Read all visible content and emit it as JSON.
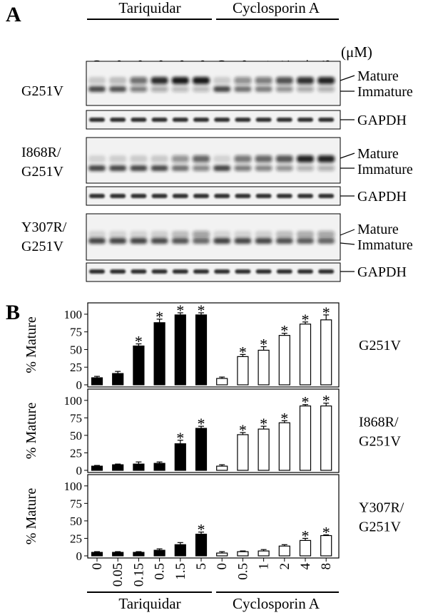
{
  "figure": {
    "panel_a_label": "A",
    "panel_b_label": "B",
    "treatments": [
      "Tariquidar",
      "Cyclosporin A"
    ],
    "unit": "(μM)",
    "tariquidar_doses": [
      "0",
      "0.05",
      "0.15",
      "0.5",
      "1.5",
      "5"
    ],
    "cyclosporin_doses": [
      "0",
      "0.5",
      "1",
      "2",
      "4",
      "8"
    ],
    "band_mature": "Mature",
    "band_immature": "Immature",
    "loading_control": "GAPDH",
    "blots": [
      {
        "label_lines": [
          "G251V"
        ]
      },
      {
        "label_lines": [
          "I868R/",
          "G251V"
        ]
      },
      {
        "label_lines": [
          "Y307R/",
          "G251V"
        ]
      }
    ]
  },
  "chart_data": {
    "type": "bar",
    "ylabel": "% Mature",
    "ylim": [
      0,
      110
    ],
    "yticks": [
      "0",
      "25",
      "50",
      "75",
      "100"
    ],
    "categories": [
      "0",
      "0.05",
      "0.15",
      "0.5",
      "1.5",
      "5",
      "0",
      "0.5",
      "1",
      "2",
      "4",
      "8"
    ],
    "groups": [
      "Tariquidar",
      "Cyclosporin A"
    ],
    "group_colors": {
      "Tariquidar": "#000000",
      "Cyclosporin A": "#ffffff"
    },
    "significance_marker": "*",
    "panels": [
      {
        "label_lines": [
          "G251V"
        ],
        "values": [
          10,
          16,
          55,
          88,
          99,
          99,
          9,
          40,
          49,
          70,
          86,
          92
        ],
        "errors": [
          2,
          3,
          3,
          5,
          3,
          3,
          2,
          3,
          5,
          3,
          3,
          7
        ],
        "significant": [
          false,
          false,
          true,
          true,
          true,
          true,
          false,
          true,
          true,
          true,
          true,
          true
        ]
      },
      {
        "label_lines": [
          "I868R/",
          "G251V"
        ],
        "values": [
          6,
          8,
          9,
          10,
          38,
          60,
          6,
          51,
          59,
          68,
          92,
          92
        ],
        "errors": [
          1,
          1,
          3,
          2,
          5,
          3,
          2,
          3,
          4,
          3,
          2,
          4
        ],
        "significant": [
          false,
          false,
          false,
          false,
          true,
          true,
          false,
          true,
          true,
          true,
          true,
          true
        ]
      },
      {
        "label_lines": [
          "Y307R/",
          "G251V"
        ],
        "values": [
          5,
          5,
          5,
          8,
          16,
          31,
          4,
          6,
          7,
          14,
          22,
          29
        ],
        "errors": [
          1,
          1,
          1,
          2,
          3,
          3,
          2,
          1,
          2,
          2,
          3,
          1
        ],
        "significant": [
          false,
          false,
          false,
          false,
          false,
          true,
          false,
          false,
          false,
          false,
          true,
          true
        ]
      }
    ]
  }
}
